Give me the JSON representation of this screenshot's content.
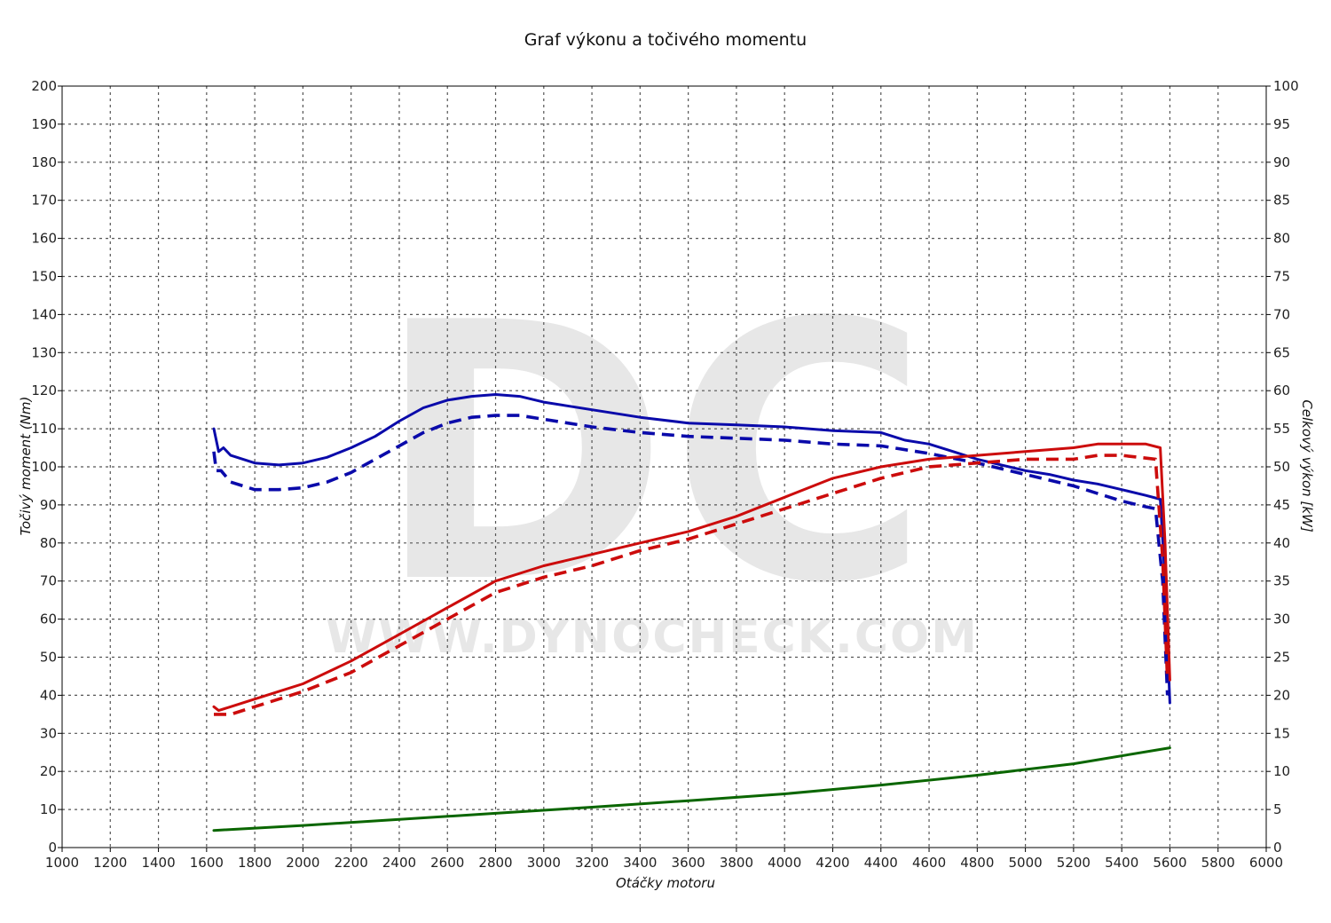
{
  "chart_data": {
    "type": "line",
    "title": "Graf výkonu a točivého momentu",
    "xlabel": "Otáčky motoru",
    "ylabel_left": "Točivý moment (Nm)",
    "ylabel_right": "Celkový výkon [kW]",
    "xlim": [
      1000,
      6000
    ],
    "ylim_left": [
      0,
      200
    ],
    "ylim_right": [
      0,
      100
    ],
    "x_ticks": [
      1000,
      1200,
      1400,
      1600,
      1800,
      2000,
      2200,
      2400,
      2600,
      2800,
      3000,
      3200,
      3400,
      3600,
      3800,
      4000,
      4200,
      4400,
      4600,
      4800,
      5000,
      5200,
      5400,
      5600,
      5800,
      6000
    ],
    "y_ticks_left": [
      0,
      10,
      20,
      30,
      40,
      50,
      60,
      70,
      80,
      90,
      100,
      110,
      120,
      130,
      140,
      150,
      160,
      170,
      180,
      190,
      200
    ],
    "y_ticks_right": [
      0,
      5,
      10,
      15,
      20,
      25,
      30,
      35,
      40,
      45,
      50,
      55,
      60,
      65,
      70,
      75,
      80,
      85,
      90,
      95,
      100
    ],
    "grid": true,
    "watermark": {
      "logo": "DC",
      "url": "WWW.DYNOCHECK.COM"
    },
    "series": [
      {
        "axis": "left",
        "color": "#0a0aaa",
        "style": "solid",
        "points": [
          [
            1630,
            110
          ],
          [
            1650,
            104
          ],
          [
            1670,
            105
          ],
          [
            1700,
            103
          ],
          [
            1800,
            101
          ],
          [
            1900,
            100.5
          ],
          [
            2000,
            101
          ],
          [
            2100,
            102.5
          ],
          [
            2200,
            105
          ],
          [
            2300,
            108
          ],
          [
            2400,
            112
          ],
          [
            2500,
            115.5
          ],
          [
            2600,
            117.5
          ],
          [
            2700,
            118.5
          ],
          [
            2800,
            119
          ],
          [
            2900,
            118.5
          ],
          [
            3000,
            117
          ],
          [
            3200,
            115
          ],
          [
            3400,
            113
          ],
          [
            3600,
            111.5
          ],
          [
            3800,
            111
          ],
          [
            4000,
            110.5
          ],
          [
            4200,
            109.5
          ],
          [
            4400,
            109
          ],
          [
            4500,
            107
          ],
          [
            4600,
            106
          ],
          [
            4700,
            104
          ],
          [
            4800,
            102
          ],
          [
            4900,
            100.5
          ],
          [
            5000,
            99
          ],
          [
            5100,
            98
          ],
          [
            5200,
            96.5
          ],
          [
            5300,
            95.5
          ],
          [
            5400,
            94
          ],
          [
            5500,
            92.5
          ],
          [
            5560,
            91.5
          ],
          [
            5580,
            70
          ],
          [
            5600,
            38
          ]
        ]
      },
      {
        "axis": "left",
        "color": "#0a0aaa",
        "style": "dashed",
        "points": [
          [
            1630,
            104
          ],
          [
            1640,
            99
          ],
          [
            1660,
            99
          ],
          [
            1700,
            96
          ],
          [
            1800,
            94
          ],
          [
            1900,
            94
          ],
          [
            2000,
            94.5
          ],
          [
            2100,
            96
          ],
          [
            2200,
            98.5
          ],
          [
            2300,
            102
          ],
          [
            2400,
            105.5
          ],
          [
            2500,
            109
          ],
          [
            2600,
            111.5
          ],
          [
            2700,
            113
          ],
          [
            2800,
            113.5
          ],
          [
            2900,
            113.5
          ],
          [
            3000,
            112.5
          ],
          [
            3200,
            110.5
          ],
          [
            3400,
            109
          ],
          [
            3600,
            108
          ],
          [
            3800,
            107.5
          ],
          [
            4000,
            107
          ],
          [
            4200,
            106
          ],
          [
            4400,
            105.5
          ],
          [
            4600,
            103.5
          ],
          [
            4800,
            101
          ],
          [
            5000,
            98
          ],
          [
            5200,
            95
          ],
          [
            5400,
            91
          ],
          [
            5500,
            89.5
          ],
          [
            5540,
            89
          ],
          [
            5570,
            70
          ],
          [
            5590,
            40
          ]
        ]
      },
      {
        "axis": "right",
        "color": "#cc0c0c",
        "style": "solid",
        "points": [
          [
            1630,
            18.5
          ],
          [
            1650,
            18
          ],
          [
            1700,
            18.5
          ],
          [
            1800,
            19.5
          ],
          [
            1900,
            20.5
          ],
          [
            2000,
            21.5
          ],
          [
            2200,
            24.5
          ],
          [
            2400,
            28
          ],
          [
            2600,
            31.5
          ],
          [
            2800,
            35
          ],
          [
            3000,
            37
          ],
          [
            3200,
            38.5
          ],
          [
            3400,
            40
          ],
          [
            3600,
            41.5
          ],
          [
            3800,
            43.5
          ],
          [
            4000,
            46
          ],
          [
            4200,
            48.5
          ],
          [
            4400,
            50
          ],
          [
            4600,
            51
          ],
          [
            4800,
            51.5
          ],
          [
            5000,
            52
          ],
          [
            5200,
            52.5
          ],
          [
            5300,
            53
          ],
          [
            5400,
            53
          ],
          [
            5500,
            53
          ],
          [
            5560,
            52.5
          ],
          [
            5580,
            40
          ],
          [
            5600,
            22
          ]
        ]
      },
      {
        "axis": "right",
        "color": "#cc0c0c",
        "style": "dashed",
        "points": [
          [
            1630,
            17.5
          ],
          [
            1640,
            17.5
          ],
          [
            1700,
            17.5
          ],
          [
            1800,
            18.5
          ],
          [
            1900,
            19.5
          ],
          [
            2000,
            20.5
          ],
          [
            2200,
            23
          ],
          [
            2400,
            26.5
          ],
          [
            2600,
            30
          ],
          [
            2800,
            33.5
          ],
          [
            3000,
            35.5
          ],
          [
            3200,
            37
          ],
          [
            3400,
            39
          ],
          [
            3600,
            40.5
          ],
          [
            3800,
            42.5
          ],
          [
            4000,
            44.5
          ],
          [
            4200,
            46.5
          ],
          [
            4400,
            48.5
          ],
          [
            4600,
            50
          ],
          [
            4800,
            50.5
          ],
          [
            5000,
            51
          ],
          [
            5200,
            51
          ],
          [
            5300,
            51.5
          ],
          [
            5400,
            51.5
          ],
          [
            5540,
            51
          ],
          [
            5570,
            38
          ],
          [
            5590,
            22
          ]
        ]
      },
      {
        "axis": "left",
        "color": "#0a6600",
        "style": "solid",
        "points": [
          [
            1630,
            4.5
          ],
          [
            2000,
            5.8
          ],
          [
            2400,
            7.4
          ],
          [
            2800,
            9
          ],
          [
            3200,
            10.6
          ],
          [
            3600,
            12.3
          ],
          [
            4000,
            14.1
          ],
          [
            4400,
            16.4
          ],
          [
            4800,
            19
          ],
          [
            5200,
            22
          ],
          [
            5600,
            26.2
          ]
        ]
      }
    ]
  }
}
